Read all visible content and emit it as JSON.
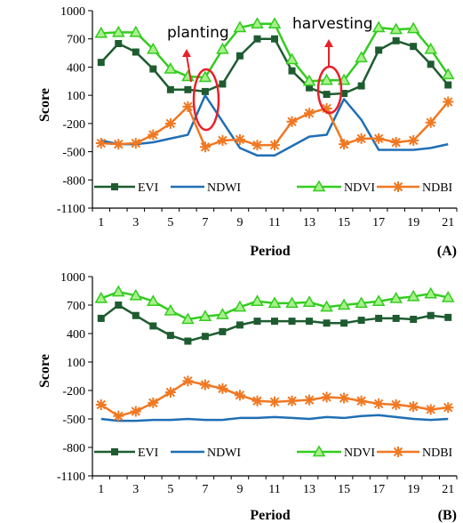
{
  "chart_data": [
    {
      "type": "line",
      "panel_label": "(A)",
      "xlabel": "Period",
      "ylabel": "Score",
      "ylim": [
        -1100,
        1000
      ],
      "yticks": [
        1000,
        700,
        400,
        100,
        -200,
        -500,
        -800,
        -1100
      ],
      "x": [
        1,
        2,
        3,
        4,
        5,
        6,
        7,
        8,
        9,
        10,
        11,
        12,
        13,
        14,
        15,
        16,
        17,
        18,
        19,
        20,
        21
      ],
      "xtick_labels": [
        "1",
        "3",
        "5",
        "7",
        "9",
        "11",
        "13",
        "15",
        "17",
        "19",
        "21"
      ],
      "legend": "bottom",
      "annotations": [
        {
          "text": "planting",
          "near_x": 7
        },
        {
          "text": "harvesting",
          "near_x": 14
        }
      ],
      "series": [
        {
          "name": "EVI",
          "color": "#1e5c30",
          "marker": "square",
          "values": [
            450,
            650,
            560,
            380,
            160,
            160,
            140,
            220,
            520,
            700,
            700,
            360,
            180,
            110,
            120,
            200,
            580,
            680,
            620,
            430,
            210
          ]
        },
        {
          "name": "NDWI",
          "color": "#1f6fb4",
          "marker": "none",
          "values": [
            -380,
            -420,
            -420,
            -400,
            -360,
            -320,
            100,
            -180,
            -460,
            -540,
            -540,
            -440,
            -340,
            -320,
            60,
            -160,
            -480,
            -480,
            -480,
            -460,
            -420
          ]
        },
        {
          "name": "NDVI",
          "color": "#33cc1f",
          "marker": "triangle",
          "values": [
            760,
            770,
            770,
            590,
            380,
            300,
            290,
            590,
            820,
            860,
            860,
            480,
            250,
            260,
            260,
            500,
            820,
            800,
            810,
            590,
            320
          ]
        },
        {
          "name": "NDBI",
          "color": "#f07822",
          "marker": "star",
          "values": [
            -410,
            -420,
            -410,
            -320,
            -200,
            -20,
            -450,
            -380,
            -370,
            -430,
            -430,
            -180,
            -90,
            -40,
            -420,
            -360,
            -360,
            -400,
            -380,
            -190,
            30
          ]
        }
      ]
    },
    {
      "type": "line",
      "panel_label": "(B)",
      "xlabel": "Period",
      "ylabel": "Score",
      "ylim": [
        -1100,
        1000
      ],
      "yticks": [
        1000,
        700,
        400,
        100,
        -200,
        -500,
        -800,
        -1100
      ],
      "x": [
        1,
        2,
        3,
        4,
        5,
        6,
        7,
        8,
        9,
        10,
        11,
        12,
        13,
        14,
        15,
        16,
        17,
        18,
        19,
        20,
        21
      ],
      "xtick_labels": [
        "1",
        "3",
        "5",
        "7",
        "9",
        "11",
        "13",
        "15",
        "17",
        "19",
        "21"
      ],
      "legend": "bottom",
      "series": [
        {
          "name": "EVI",
          "color": "#1e5c30",
          "marker": "square",
          "values": [
            560,
            700,
            590,
            480,
            380,
            320,
            370,
            420,
            490,
            530,
            530,
            530,
            530,
            510,
            510,
            540,
            560,
            560,
            550,
            590,
            570
          ]
        },
        {
          "name": "NDWI",
          "color": "#1f6fb4",
          "marker": "none",
          "values": [
            -500,
            -520,
            -520,
            -510,
            -510,
            -500,
            -510,
            -510,
            -490,
            -490,
            -480,
            -490,
            -500,
            -480,
            -490,
            -470,
            -460,
            -480,
            -500,
            -510,
            -500
          ]
        },
        {
          "name": "NDVI",
          "color": "#33cc1f",
          "marker": "triangle",
          "values": [
            770,
            840,
            800,
            740,
            640,
            550,
            580,
            600,
            680,
            740,
            720,
            720,
            730,
            680,
            700,
            720,
            740,
            770,
            790,
            820,
            780
          ]
        },
        {
          "name": "NDBI",
          "color": "#f07822",
          "marker": "star",
          "values": [
            -350,
            -470,
            -420,
            -330,
            -220,
            -100,
            -140,
            -180,
            -250,
            -310,
            -320,
            -310,
            -300,
            -270,
            -280,
            -310,
            -340,
            -350,
            -370,
            -400,
            -380
          ]
        }
      ]
    }
  ]
}
